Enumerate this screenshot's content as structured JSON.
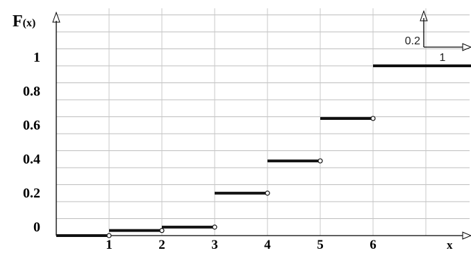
{
  "chart_data": {
    "type": "line",
    "plot_style": "step-function",
    "ylabel_main": "F",
    "ylabel_sub": "(x)",
    "xlabel": "x",
    "xlim": [
      0,
      7.9
    ],
    "ylim": [
      0,
      1.1
    ],
    "x_ticks": [
      "1",
      "2",
      "3",
      "4",
      "5",
      "6"
    ],
    "y_ticks": [
      "0",
      "0.2",
      "0.4",
      "0.6",
      "0.8",
      "1"
    ],
    "segments": [
      {
        "x_start": 0,
        "x_end": 1,
        "y": 0
      },
      {
        "x_start": 1,
        "x_end": 2,
        "y": 0.03
      },
      {
        "x_start": 2,
        "x_end": 3,
        "y": 0.05
      },
      {
        "x_start": 3,
        "x_end": 4,
        "y": 0.25
      },
      {
        "x_start": 4,
        "x_end": 5,
        "y": 0.44
      },
      {
        "x_start": 5,
        "x_end": 6,
        "y": 0.69
      },
      {
        "x_start": 6,
        "x_end": 7.9,
        "y": 1
      }
    ],
    "open_endpoints": true,
    "grid": true,
    "scale_marker": {
      "y_label": "0.2",
      "x_label": "1"
    }
  }
}
